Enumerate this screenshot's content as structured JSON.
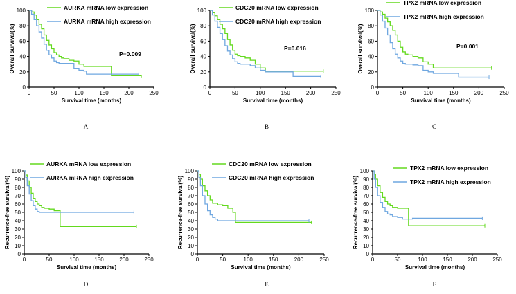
{
  "colors": {
    "low": "#63d91e",
    "high": "#6fa7e0"
  },
  "chart_data": [
    {
      "type": "line",
      "panel": "A",
      "ylabel": "Overall survival(%)",
      "xlabel": "Survival time (months)",
      "xlim": [
        0,
        250
      ],
      "ylim": [
        0,
        100
      ],
      "xticks": [
        "0",
        "50",
        "100",
        "150",
        "200",
        "250"
      ],
      "yticks": [
        "0",
        "20",
        "40",
        "60",
        "80",
        "100"
      ],
      "pvalue": "P=0.009",
      "series": [
        {
          "name": "AURKA mRNA low expression",
          "key": "low",
          "x": [
            0,
            5,
            10,
            15,
            20,
            25,
            30,
            35,
            40,
            45,
            50,
            55,
            60,
            65,
            70,
            80,
            90,
            100,
            110,
            160,
            165,
            225
          ],
          "y": [
            100,
            98,
            94,
            88,
            82,
            76,
            68,
            61,
            55,
            50,
            45,
            42,
            40,
            38,
            37,
            35,
            34,
            30,
            27,
            27,
            15,
            14
          ]
        },
        {
          "name": "AURKA mRNA high expression",
          "key": "high",
          "x": [
            0,
            5,
            10,
            15,
            20,
            25,
            30,
            35,
            40,
            45,
            50,
            55,
            60,
            70,
            80,
            90,
            100,
            110,
            115,
            220
          ],
          "y": [
            100,
            95,
            88,
            80,
            72,
            64,
            56,
            48,
            42,
            38,
            34,
            32,
            31,
            31,
            31,
            24,
            22,
            21,
            17,
            17
          ]
        }
      ]
    },
    {
      "type": "line",
      "panel": "B",
      "ylabel": "Overall survival(%)",
      "xlabel": "Survival time (months)",
      "xlim": [
        0,
        250
      ],
      "ylim": [
        0,
        100
      ],
      "xticks": [
        "0",
        "50",
        "100",
        "150",
        "200",
        "250"
      ],
      "yticks": [
        "0",
        "20",
        "40",
        "60",
        "80",
        "100"
      ],
      "pvalue": "P=0.016",
      "series": [
        {
          "name": "CDC20 mRNA low expression",
          "key": "low",
          "x": [
            0,
            5,
            10,
            15,
            20,
            25,
            30,
            35,
            40,
            45,
            50,
            55,
            60,
            70,
            80,
            90,
            100,
            110,
            225
          ],
          "y": [
            100,
            97,
            93,
            88,
            82,
            76,
            70,
            62,
            55,
            48,
            43,
            41,
            40,
            38,
            35,
            30,
            25,
            21,
            21
          ]
        },
        {
          "name": "CDC20 mRNA high expression",
          "key": "high",
          "x": [
            0,
            5,
            10,
            15,
            20,
            25,
            30,
            35,
            40,
            45,
            50,
            55,
            60,
            70,
            80,
            90,
            100,
            110,
            165,
            220
          ],
          "y": [
            100,
            94,
            86,
            78,
            70,
            62,
            54,
            47,
            42,
            37,
            33,
            31,
            30,
            30,
            28,
            25,
            22,
            20,
            14,
            14
          ]
        }
      ]
    },
    {
      "type": "line",
      "panel": "C",
      "ylabel": "Overall survival(%)",
      "xlabel": "Survival time (months)",
      "xlim": [
        0,
        250
      ],
      "ylim": [
        0,
        100
      ],
      "xticks": [
        "0",
        "50",
        "100",
        "150",
        "200",
        "250"
      ],
      "yticks": [
        "0",
        "20",
        "40",
        "60",
        "80",
        "100"
      ],
      "pvalue": "P=0.001",
      "series": [
        {
          "name": "TPX2 mRNA low expression",
          "key": "low",
          "x": [
            0,
            5,
            10,
            15,
            20,
            25,
            30,
            35,
            40,
            45,
            50,
            55,
            60,
            70,
            80,
            90,
            100,
            110,
            225
          ],
          "y": [
            100,
            98,
            95,
            90,
            85,
            80,
            74,
            68,
            60,
            52,
            46,
            43,
            42,
            40,
            38,
            33,
            30,
            25,
            25
          ]
        },
        {
          "name": "TPX2 mRNA high expression",
          "key": "high",
          "x": [
            0,
            5,
            10,
            15,
            20,
            25,
            30,
            35,
            40,
            45,
            50,
            55,
            60,
            70,
            80,
            90,
            100,
            110,
            160,
            220
          ],
          "y": [
            100,
            94,
            86,
            77,
            68,
            58,
            50,
            43,
            38,
            34,
            31,
            30,
            30,
            29,
            28,
            22,
            20,
            18,
            13,
            13
          ]
        }
      ]
    },
    {
      "type": "line",
      "panel": "D",
      "ylabel": "Recurrence-free survival(%)",
      "xlabel": "Survival time (months)",
      "xlim": [
        0,
        250
      ],
      "ylim": [
        0,
        100
      ],
      "xticks": [
        "0",
        "50",
        "100",
        "150",
        "200",
        "250"
      ],
      "yticks": [
        "0",
        "10",
        "20",
        "30",
        "40",
        "50",
        "60",
        "70",
        "80",
        "90",
        "100"
      ],
      "series": [
        {
          "name": "AURKA mRNA low expression",
          "key": "low",
          "x": [
            0,
            3,
            6,
            10,
            14,
            18,
            22,
            26,
            30,
            35,
            40,
            50,
            60,
            70,
            72,
            225
          ],
          "y": [
            100,
            95,
            88,
            80,
            73,
            67,
            63,
            60,
            58,
            56,
            55,
            54,
            52,
            52,
            33,
            33
          ]
        },
        {
          "name": "AURKA mRNA high expression",
          "key": "high",
          "x": [
            0,
            3,
            6,
            10,
            14,
            18,
            22,
            26,
            30,
            35,
            40,
            60,
            220
          ],
          "y": [
            100,
            92,
            82,
            72,
            64,
            58,
            54,
            51,
            50,
            50,
            50,
            50,
            50
          ]
        }
      ]
    },
    {
      "type": "line",
      "panel": "E",
      "ylabel": "Recurrence-free survival(%)",
      "xlabel": "Survival time (months)",
      "xlim": [
        0,
        250
      ],
      "ylim": [
        0,
        100
      ],
      "xticks": [
        "0",
        "50",
        "100",
        "150",
        "200",
        "250"
      ],
      "yticks": [
        "0",
        "10",
        "20",
        "30",
        "40",
        "50",
        "60",
        "70",
        "80",
        "90",
        "100"
      ],
      "series": [
        {
          "name": "CDC20 mRNA low expression",
          "key": "low",
          "x": [
            0,
            3,
            6,
            10,
            15,
            20,
            25,
            30,
            40,
            50,
            60,
            70,
            75,
            225
          ],
          "y": [
            100,
            96,
            90,
            82,
            76,
            70,
            65,
            61,
            59,
            58,
            55,
            50,
            38,
            38
          ]
        },
        {
          "name": "CDC20 mRNA high expression",
          "key": "high",
          "x": [
            0,
            3,
            6,
            10,
            15,
            20,
            25,
            30,
            35,
            40,
            50,
            60,
            70,
            80,
            220
          ],
          "y": [
            100,
            92,
            82,
            70,
            60,
            52,
            47,
            44,
            42,
            40,
            40,
            40,
            40,
            40,
            40
          ]
        }
      ]
    },
    {
      "type": "line",
      "panel": "F",
      "ylabel": "Recurrence-free survival(%)",
      "xlabel": "Survival time (months)",
      "xlim": [
        0,
        250
      ],
      "ylim": [
        0,
        100
      ],
      "xticks": [
        "0",
        "50",
        "100",
        "150",
        "200",
        "250"
      ],
      "yticks": [
        "0",
        "10",
        "20",
        "30",
        "40",
        "50",
        "60",
        "70",
        "80",
        "90",
        "100"
      ],
      "series": [
        {
          "name": "TPX2 mRNA low expression",
          "key": "low",
          "x": [
            0,
            3,
            6,
            10,
            15,
            20,
            25,
            30,
            35,
            40,
            50,
            60,
            70,
            72,
            225
          ],
          "y": [
            100,
            96,
            90,
            82,
            74,
            68,
            63,
            60,
            58,
            56,
            55,
            55,
            55,
            34,
            34
          ]
        },
        {
          "name": "TPX2 mRNA high expression",
          "key": "high",
          "x": [
            0,
            3,
            6,
            10,
            15,
            20,
            25,
            30,
            35,
            40,
            50,
            60,
            80,
            220
          ],
          "y": [
            100,
            90,
            80,
            70,
            62,
            56,
            51,
            48,
            47,
            45,
            44,
            42,
            43,
            43
          ]
        }
      ]
    }
  ]
}
